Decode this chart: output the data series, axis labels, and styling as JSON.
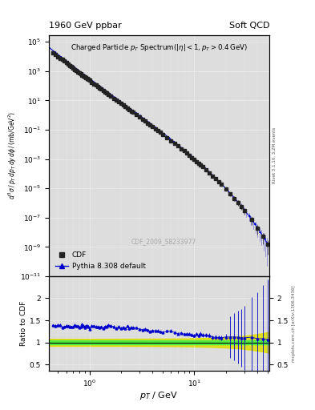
{
  "title_left": "1960 GeV ppbar",
  "title_right": "Soft QCD",
  "xlabel": "p_{T} / GeV",
  "ylabel": "d^{3}\\sigma / p_{T} dp_{T} dy d\\phi / (mb/GeV^{2})",
  "ylabel_ratio": "Ratio to CDF",
  "watermark": "CDF_2009_S8233977",
  "right_label_top": "Rivet 3.1.10, 3.2M events",
  "right_label_bot": "mcplots.cern.ch [arXiv:1306.3436]",
  "legend_data": "CDF",
  "legend_mc": "Pythia 8.308 default",
  "xlim": [
    0.4,
    50
  ],
  "ylim_main": [
    1e-11,
    300000.0
  ],
  "ylim_ratio": [
    0.35,
    2.5
  ],
  "data_color": "#222222",
  "mc_color": "#0000cc",
  "band_green": "#44ee44",
  "band_yellow": "#dddd00",
  "plot_bg": "#dddddd"
}
